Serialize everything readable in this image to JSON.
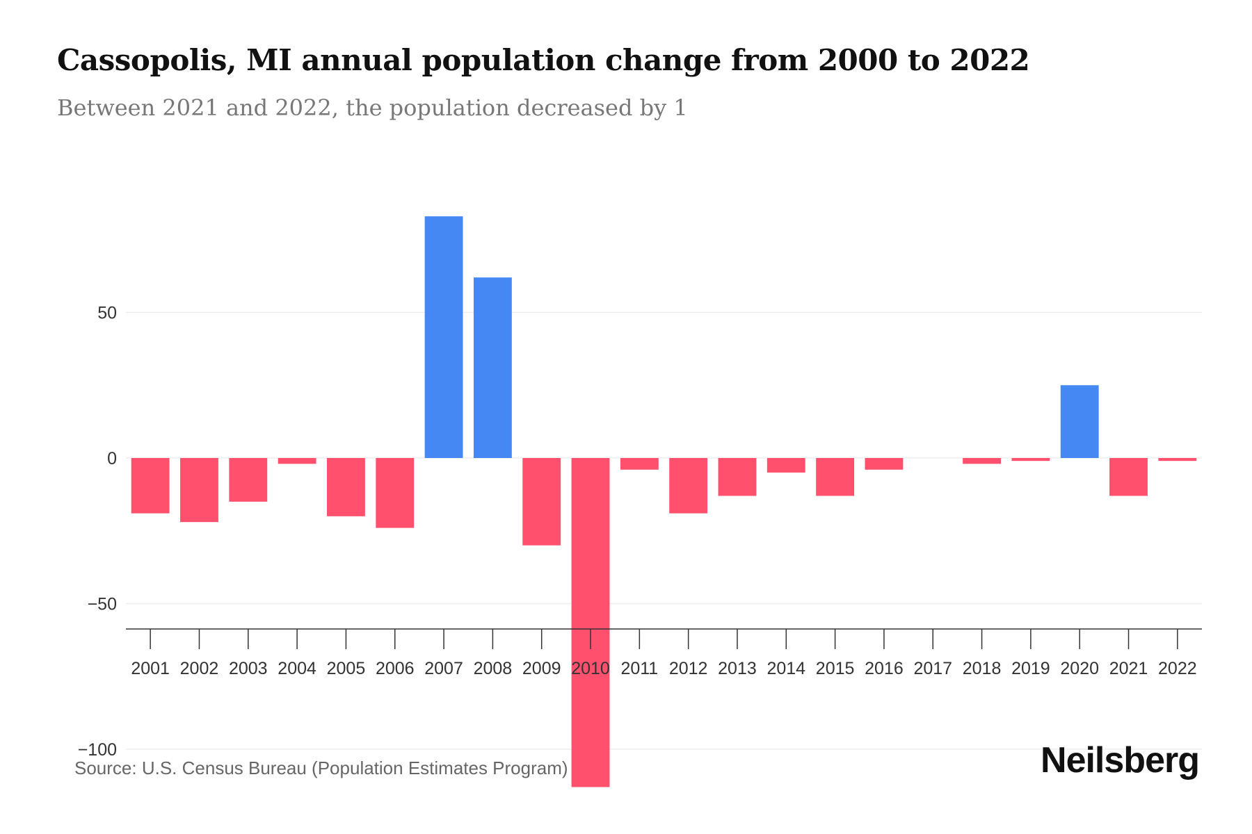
{
  "title": "Cassopolis, MI annual population change from 2000 to 2022",
  "subtitle": "Between 2021 and 2022, the population decreased by 1",
  "source": "Source: U.S. Census Bureau (Population Estimates Program)",
  "logo": "Neilsberg",
  "colors": {
    "positive": "#4688F3",
    "negative": "#FF506E",
    "grid": "#eeeeee",
    "axis": "#333333"
  },
  "chart_data": {
    "type": "bar",
    "title": "Cassopolis, MI annual population change from 2000 to 2022",
    "xlabel": "",
    "ylabel": "",
    "categories": [
      "2001",
      "2002",
      "2003",
      "2004",
      "2005",
      "2006",
      "2007",
      "2008",
      "2009",
      "2010",
      "2011",
      "2012",
      "2013",
      "2014",
      "2015",
      "2016",
      "2017",
      "2018",
      "2019",
      "2020",
      "2021",
      "2022"
    ],
    "values": [
      -19,
      -22,
      -15,
      -2,
      -20,
      -24,
      83,
      62,
      -30,
      -113,
      -4,
      -19,
      -13,
      -5,
      -13,
      -4,
      0,
      -2,
      -1,
      25,
      -13,
      -1
    ],
    "yticks": [
      50,
      0,
      -50,
      -100
    ],
    "ytick_labels": [
      "50",
      "0",
      "−50",
      "−100"
    ],
    "ylim": [
      -125,
      90
    ],
    "grid": true,
    "legend": "none"
  }
}
